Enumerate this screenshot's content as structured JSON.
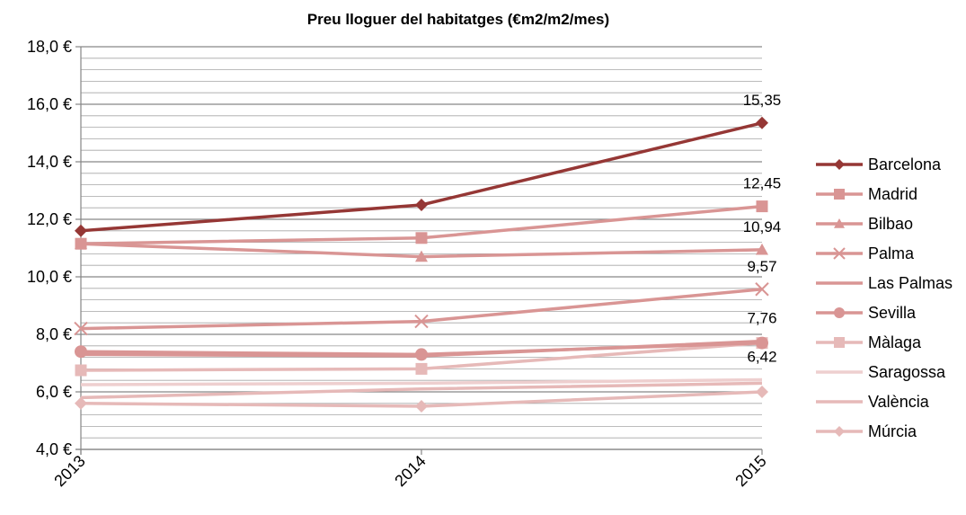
{
  "chart_data": {
    "type": "line",
    "title": "Preu lloguer del habitatges (€m2/m2/mes)",
    "xlabel": "",
    "ylabel": "",
    "categories": [
      "2013",
      "2014",
      "2015"
    ],
    "ylim": [
      4,
      18
    ],
    "y_ticks": [
      "4,0 €",
      "6,0 €",
      "8,0 €",
      "10,0 €",
      "12,0 €",
      "14,0 €",
      "16,0 €",
      "18,0 €"
    ],
    "grid": true,
    "legend_position": "right",
    "series": [
      {
        "name": "Barcelona",
        "values": [
          11.6,
          12.5,
          15.35
        ],
        "color": "#953735",
        "marker": "diamond"
      },
      {
        "name": "Madrid",
        "values": [
          11.15,
          11.35,
          12.45
        ],
        "color": "#d99594",
        "marker": "square"
      },
      {
        "name": "Bilbao",
        "values": [
          11.15,
          10.7,
          10.94
        ],
        "color": "#d99594",
        "marker": "triangle"
      },
      {
        "name": "Palma",
        "values": [
          8.2,
          8.45,
          9.57
        ],
        "color": "#d99594",
        "marker": "x"
      },
      {
        "name": "Las Palmas",
        "values": [
          7.3,
          7.25,
          7.76
        ],
        "color": "#d99594",
        "marker": "none"
      },
      {
        "name": "Sevilla",
        "values": [
          7.4,
          7.3,
          7.7
        ],
        "color": "#d99594",
        "marker": "circle"
      },
      {
        "name": "Màlaga",
        "values": [
          6.75,
          6.8,
          7.7
        ],
        "color": "#e6b9b8",
        "marker": "square"
      },
      {
        "name": "Saragossa",
        "values": [
          6.25,
          6.3,
          6.42
        ],
        "color": "#eecfcf",
        "marker": "none"
      },
      {
        "name": "València",
        "values": [
          5.8,
          6.1,
          6.3
        ],
        "color": "#e6b9b8",
        "marker": "none"
      },
      {
        "name": "Múrcia",
        "values": [
          5.6,
          5.5,
          6.0
        ],
        "color": "#e6b9b8",
        "marker": "diamond"
      }
    ],
    "data_labels": [
      {
        "series": "Barcelona",
        "index": 2,
        "text": "15,35"
      },
      {
        "series": "Madrid",
        "index": 2,
        "text": "12,45"
      },
      {
        "series": "Bilbao",
        "index": 2,
        "text": "10,94"
      },
      {
        "series": "Palma",
        "index": 2,
        "text": "9,57"
      },
      {
        "series": "Las Palmas",
        "index": 2,
        "text": "7,76"
      },
      {
        "series": "Saragossa",
        "index": 2,
        "text": "6,42"
      }
    ]
  }
}
